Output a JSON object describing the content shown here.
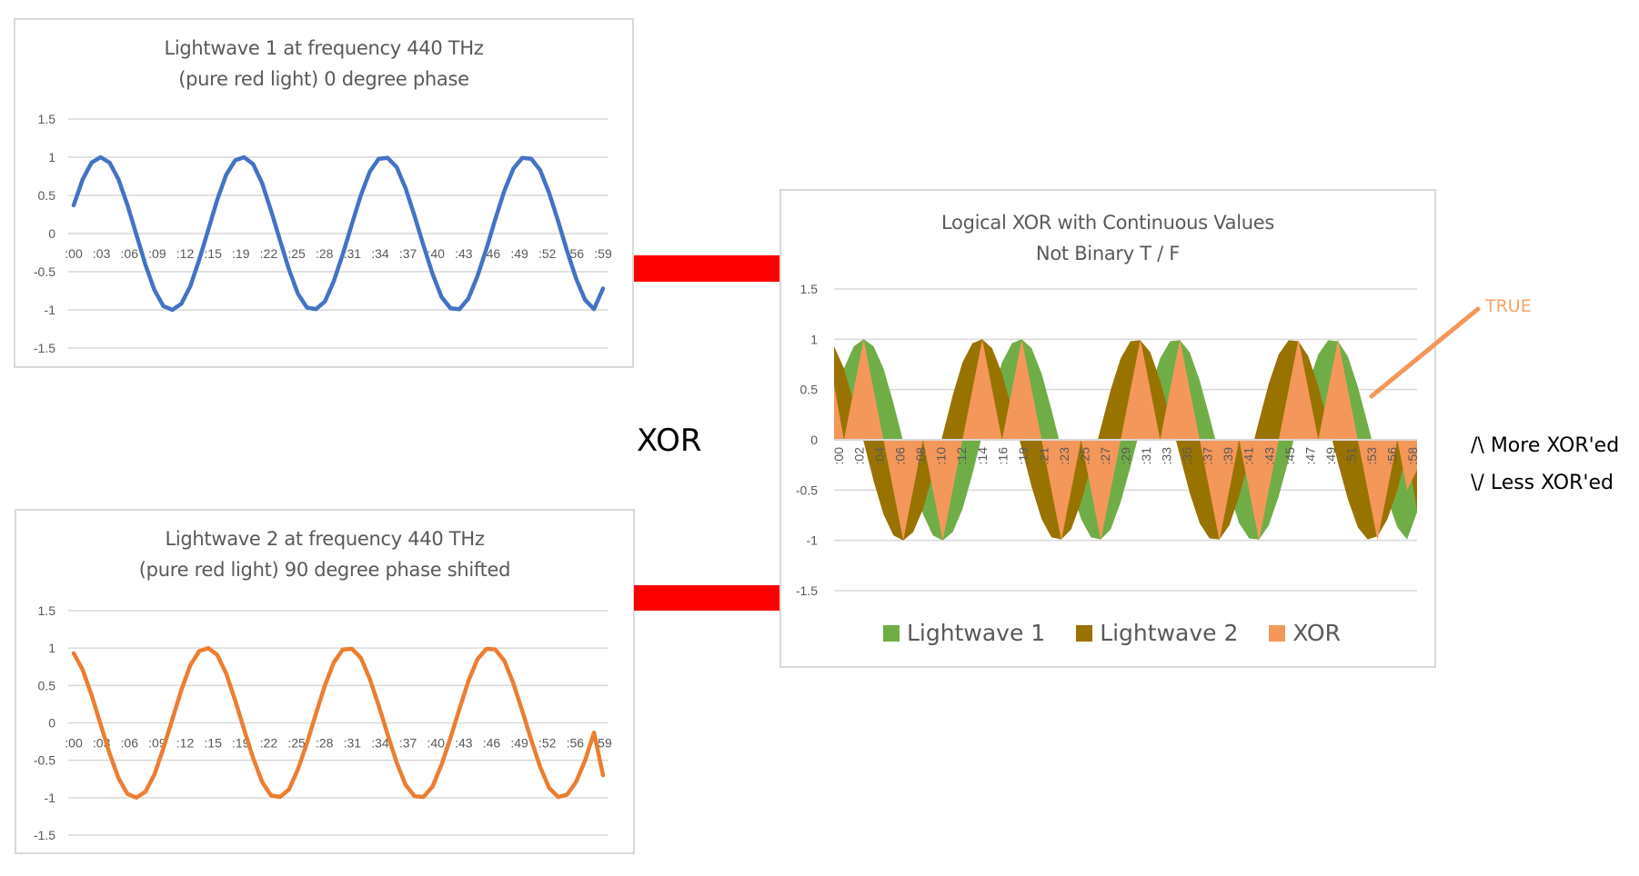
{
  "center_label": "XOR",
  "true_label": "TRUE",
  "side_notes": {
    "more": "/\\ More XOR'ed",
    "less": "\\/ Less XOR'ed"
  },
  "colors": {
    "wave1_line": "#4472c4",
    "wave2_line": "#ed7d31",
    "xor_green": "#70ad47",
    "xor_olive": "#997300",
    "xor_orange": "#f4975a",
    "connector": "#ff0000",
    "grid": "#d9d9d9",
    "text": "#595959"
  },
  "chart_data": [
    {
      "type": "line",
      "title": "Lightwave 1 at frequency 440 THz",
      "subtitle": "(pure red light) 0 degree phase",
      "title_lines": [
        "Lightwave 1 at frequency 440 THz",
        "(pure red light) 0 degree phase"
      ],
      "xlabel": "",
      "ylabel": "",
      "ylim": [
        -1.5,
        1.5
      ],
      "yticks": [
        "1.5",
        "1",
        "0.5",
        "0",
        "-0.5",
        "-1",
        "-1.5"
      ],
      "grid": true,
      "legend": null,
      "x_tick_labels": [
        ":00",
        ":03",
        ":06",
        ":09",
        ":12",
        ":15",
        ":19",
        ":22",
        ":25",
        ":28",
        ":31",
        ":34",
        ":37",
        ":40",
        ":43",
        ":46",
        ":49",
        ":52",
        ":56",
        ":59"
      ],
      "n_points": 60,
      "series": [
        {
          "name": "Lightwave 1",
          "color": "#4472c4",
          "values": [
            0.37,
            0.71,
            0.93,
            1.0,
            0.93,
            0.71,
            0.37,
            -0.02,
            -0.41,
            -0.74,
            -0.95,
            -1.0,
            -0.92,
            -0.69,
            -0.34,
            0.05,
            0.44,
            0.77,
            0.96,
            1.0,
            0.91,
            0.66,
            0.3,
            -0.09,
            -0.47,
            -0.79,
            -0.97,
            -0.99,
            -0.89,
            -0.62,
            -0.27,
            0.12,
            0.5,
            0.81,
            0.98,
            0.99,
            0.87,
            0.59,
            0.23,
            -0.16,
            -0.53,
            -0.83,
            -0.98,
            -0.99,
            -0.85,
            -0.56,
            -0.2,
            0.19,
            0.56,
            0.85,
            0.99,
            0.98,
            0.83,
            0.53,
            0.16,
            -0.23,
            -0.59,
            -0.87,
            -0.99,
            -0.72
          ]
        }
      ]
    },
    {
      "type": "line",
      "title": "Lightwave 2 at frequency 440 THz",
      "subtitle": "(pure red light) 90 degree phase shifted",
      "title_lines": [
        "Lightwave 2 at frequency 440 THz",
        "(pure red light) 90 degree phase shifted"
      ],
      "xlabel": "",
      "ylabel": "",
      "ylim": [
        -1.5,
        1.5
      ],
      "yticks": [
        "1.5",
        "1",
        "0.5",
        "0",
        "-0.5",
        "-1",
        "-1.5"
      ],
      "grid": true,
      "legend": null,
      "x_tick_labels": [
        ":00",
        ":03",
        ":06",
        ":09",
        ":12",
        ":15",
        ":19",
        ":22",
        ":25",
        ":28",
        ":31",
        ":34",
        ":37",
        ":40",
        ":43",
        ":46",
        ":49",
        ":52",
        ":56",
        ":59"
      ],
      "n_points": 60,
      "series": [
        {
          "name": "Lightwave 2",
          "color": "#ed7d31",
          "values": [
            0.93,
            0.71,
            0.37,
            -0.02,
            -0.41,
            -0.74,
            -0.95,
            -1.0,
            -0.92,
            -0.69,
            -0.34,
            0.05,
            0.44,
            0.77,
            0.96,
            1.0,
            0.91,
            0.66,
            0.3,
            -0.09,
            -0.47,
            -0.79,
            -0.97,
            -0.99,
            -0.89,
            -0.62,
            -0.27,
            0.12,
            0.5,
            0.81,
            0.98,
            0.99,
            0.87,
            0.59,
            0.23,
            -0.16,
            -0.53,
            -0.83,
            -0.98,
            -0.99,
            -0.85,
            -0.56,
            -0.2,
            0.19,
            0.56,
            0.85,
            0.99,
            0.98,
            0.83,
            0.53,
            0.16,
            -0.23,
            -0.59,
            -0.87,
            -0.99,
            -0.96,
            -0.79,
            -0.5,
            -0.13,
            -0.7
          ]
        }
      ]
    },
    {
      "type": "area",
      "title": "Logical XOR with Continuous Values",
      "subtitle": "Not Binary T / F",
      "title_lines": [
        "Logical XOR with Continuous Values",
        "Not Binary T / F"
      ],
      "xlabel": "",
      "ylabel": "",
      "ylim": [
        -1.5,
        1.5
      ],
      "yticks": [
        "1.5",
        "1",
        "0.5",
        "0",
        "-0.5",
        "-1",
        "-1.5"
      ],
      "grid": true,
      "legend_position": "bottom",
      "legend": [
        "Lightwave 1",
        "Lightwave 2",
        "XOR"
      ],
      "x_tick_labels": [
        ":00",
        ":02",
        ":04",
        ":06",
        ":08",
        ":10",
        ":12",
        ":14",
        ":16",
        ":19",
        ":21",
        ":23",
        ":25",
        ":27",
        ":29",
        ":31",
        ":33",
        ":35",
        ":37",
        ":39",
        ":41",
        ":43",
        ":45",
        ":47",
        ":49",
        ":51",
        ":53",
        ":56",
        ":58"
      ],
      "series": [
        {
          "name": "Lightwave 1",
          "color": "#70ad47",
          "values": [
            0.37,
            0.71,
            0.93,
            1.0,
            0.93,
            0.71,
            0.37,
            -0.02,
            -0.41,
            -0.74,
            -0.95,
            -1.0,
            -0.92,
            -0.69,
            -0.34,
            0.05,
            0.44,
            0.77,
            0.96,
            1.0,
            0.91,
            0.66,
            0.3,
            -0.09,
            -0.47,
            -0.79,
            -0.97,
            -0.99,
            -0.89,
            -0.62,
            -0.27,
            0.12,
            0.5,
            0.81,
            0.98,
            0.99,
            0.87,
            0.59,
            0.23,
            -0.16,
            -0.53,
            -0.83,
            -0.98,
            -0.99,
            -0.85,
            -0.56,
            -0.2,
            0.19,
            0.56,
            0.85,
            0.99,
            0.98,
            0.83,
            0.53,
            0.16,
            -0.23,
            -0.59,
            -0.87,
            -0.99,
            -0.72
          ]
        },
        {
          "name": "Lightwave 2",
          "color": "#997300",
          "values": [
            0.93,
            0.71,
            0.37,
            -0.02,
            -0.41,
            -0.74,
            -0.95,
            -1.0,
            -0.92,
            -0.69,
            -0.34,
            0.05,
            0.44,
            0.77,
            0.96,
            1.0,
            0.91,
            0.66,
            0.3,
            -0.09,
            -0.47,
            -0.79,
            -0.97,
            -0.99,
            -0.89,
            -0.62,
            -0.27,
            0.12,
            0.5,
            0.81,
            0.98,
            0.99,
            0.87,
            0.59,
            0.23,
            -0.16,
            -0.53,
            -0.83,
            -0.98,
            -0.99,
            -0.85,
            -0.56,
            -0.2,
            0.19,
            0.56,
            0.85,
            0.99,
            0.98,
            0.83,
            0.53,
            0.16,
            -0.23,
            -0.59,
            -0.87,
            -0.99,
            -0.96,
            -0.79,
            -0.5,
            -0.13,
            -0.7
          ]
        },
        {
          "name": "XOR",
          "color": "#f4975a",
          "values": [
            0.55,
            0.0,
            0.5,
            1.0,
            0.5,
            0.0,
            -0.5,
            -1.0,
            -0.5,
            0.0,
            -0.5,
            -1.0,
            -0.5,
            0.0,
            0.5,
            1.0,
            0.5,
            0.0,
            0.5,
            1.0,
            0.5,
            0.0,
            -0.5,
            -1.0,
            -0.5,
            0.0,
            -0.5,
            -1.0,
            -0.5,
            0.0,
            0.5,
            1.0,
            0.5,
            0.0,
            0.5,
            1.0,
            0.5,
            0.0,
            -0.5,
            -1.0,
            -0.5,
            0.0,
            -0.5,
            -1.0,
            -0.5,
            0.0,
            0.5,
            1.0,
            0.5,
            0.0,
            0.5,
            1.0,
            0.5,
            0.0,
            -0.5,
            -1.0,
            -0.5,
            0.0,
            -0.5,
            -0.3
          ]
        }
      ],
      "annotation": {
        "text": "TRUE",
        "points_to": "XOR positive lobe near :51"
      }
    }
  ]
}
